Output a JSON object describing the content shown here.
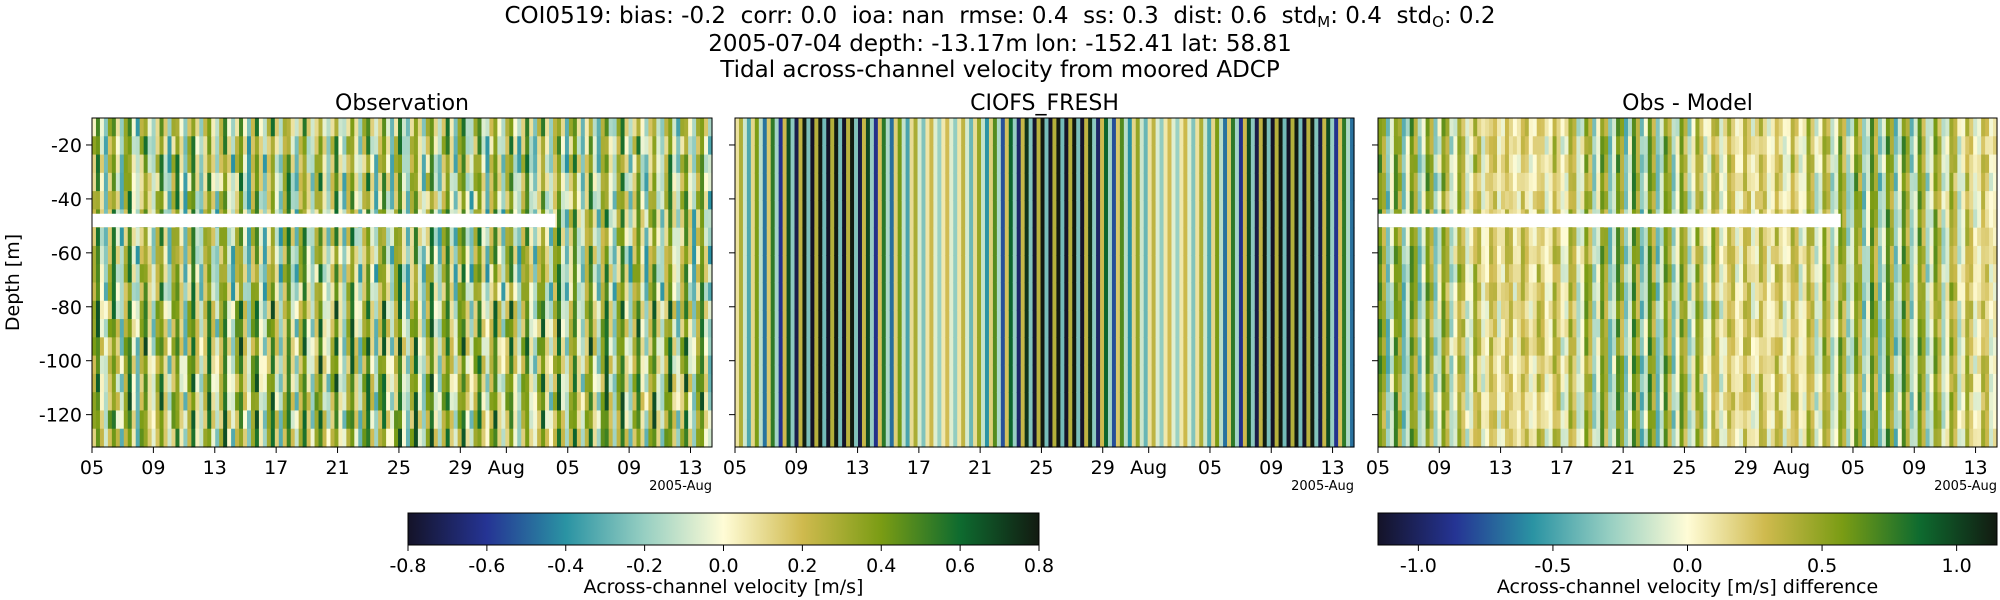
{
  "header": {
    "line1": {
      "station": "COI0519:",
      "bias": "bias: -0.2",
      "corr": "corr: 0.0",
      "ioa": "ioa: nan",
      "rmse": "rmse: 0.4",
      "ss": "ss: 0.3",
      "dist": "dist: 0.6",
      "std_m_prefix": "std",
      "std_m_sub": "M",
      "std_m_value": ": 0.4",
      "std_o_prefix": "std",
      "std_o_sub": "O",
      "std_o_value": ": 0.2"
    },
    "line2": "2005-07-04 depth: -13.17m lon: -152.41 lat: 58.81",
    "line3": "Tidal across-channel velocity from moored ADCP"
  },
  "chart_data": [
    {
      "type": "heatmap",
      "title": "Observation",
      "xlabel": "",
      "ylabel": "Depth [m]",
      "xtick_labels": [
        "05",
        "09",
        "13",
        "17",
        "21",
        "25",
        "29",
        "Aug",
        "05",
        "09",
        "13"
      ],
      "x_offset_label": "2005-Aug",
      "ytick_labels": [
        "-20",
        "-40",
        "-60",
        "-80",
        "-100",
        "-120"
      ],
      "yticks": [
        -20,
        -40,
        -60,
        -80,
        -100,
        -120
      ],
      "ylim": [
        -132,
        -10
      ],
      "xlim": [
        "2005-07-05",
        "2005-08-14"
      ],
      "colormap": "diverging blue-white-green (cmocean delta)",
      "vmin": -0.8,
      "vmax": 0.8,
      "gap": {
        "depth_range": [
          -45.5,
          -50.5
        ],
        "date_range": [
          "2005-07-05",
          "2005-08-04"
        ]
      }
    },
    {
      "type": "heatmap",
      "title": "CIOFS_FRESH",
      "xlabel": "",
      "ylabel": "",
      "xtick_labels": [
        "05",
        "09",
        "13",
        "17",
        "21",
        "25",
        "29",
        "Aug",
        "05",
        "09",
        "13"
      ],
      "x_offset_label": "2005-Aug",
      "ylim": [
        -132,
        -10
      ],
      "xlim": [
        "2005-07-05",
        "2005-08-14"
      ],
      "colormap": "diverging blue-white-green (cmocean delta)",
      "vmin": -0.8,
      "vmax": 0.8
    },
    {
      "type": "heatmap",
      "title": "Obs - Model",
      "xlabel": "",
      "ylabel": "",
      "xtick_labels": [
        "05",
        "09",
        "13",
        "17",
        "21",
        "25",
        "29",
        "Aug",
        "05",
        "09",
        "13"
      ],
      "x_offset_label": "2005-Aug",
      "ylim": [
        -132,
        -10
      ],
      "xlim": [
        "2005-07-05",
        "2005-08-14"
      ],
      "colormap": "diverging blue-white-green (cmocean delta)",
      "vmin": -1.15,
      "vmax": 1.15,
      "gap": {
        "depth_range": [
          -45.5,
          -50.5
        ],
        "date_range": [
          "2005-07-05",
          "2005-08-04"
        ]
      }
    }
  ],
  "colorbars": [
    {
      "label": "Across-channel velocity [m/s]",
      "tick_labels": [
        "-0.8",
        "-0.6",
        "-0.4",
        "-0.2",
        "0.0",
        "0.2",
        "0.4",
        "0.6",
        "0.8"
      ],
      "ticks": [
        -0.8,
        -0.6,
        -0.4,
        -0.2,
        0.0,
        0.2,
        0.4,
        0.6,
        0.8
      ],
      "range": [
        -0.8,
        0.8
      ]
    },
    {
      "label": "Across-channel velocity [m/s] difference",
      "tick_labels": [
        "-1.0",
        "-0.5",
        "0.0",
        "0.5",
        "1.0"
      ],
      "ticks": [
        -1.0,
        -0.5,
        0.0,
        0.5,
        1.0
      ],
      "range": [
        -1.15,
        1.15
      ]
    }
  ],
  "colors": {
    "cmap_stops": [
      "#141328",
      "#253494",
      "#2a93a3",
      "#97cfc2",
      "#fffcd6",
      "#cfba4e",
      "#7a9c14",
      "#0e6b2f",
      "#121a11"
    ],
    "gap_fill": "#ffffff"
  }
}
